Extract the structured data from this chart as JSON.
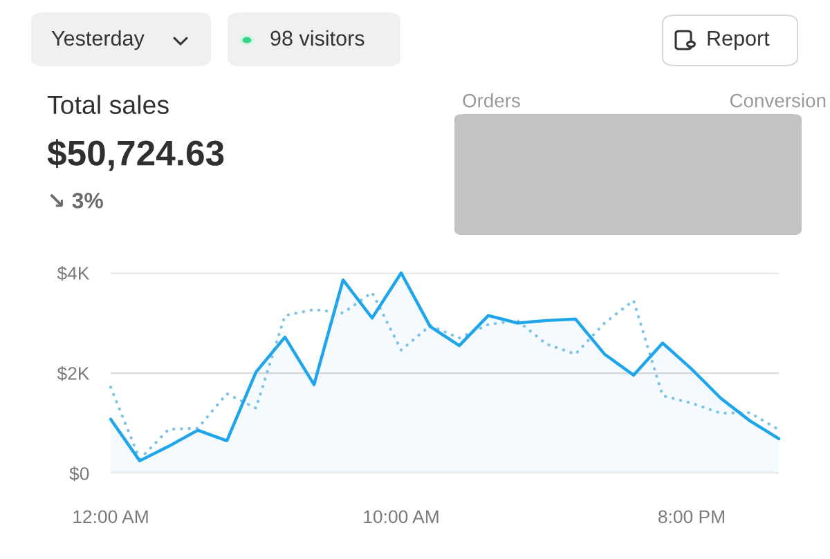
{
  "chart_data": {
    "type": "line",
    "title": "Total sales",
    "subtitle": "$50,724.63",
    "annotations": [
      "Yesterday",
      "98 visitors",
      "Report",
      "Orders",
      "Conversion",
      "↘ 3%"
    ],
    "x": [
      0,
      1,
      2,
      3,
      4,
      5,
      6,
      7,
      8,
      9,
      10,
      11,
      12,
      13,
      14,
      15,
      16,
      17,
      18,
      19,
      20,
      21,
      22,
      23
    ],
    "series": [
      {
        "type": "area",
        "color": "#1fa5ea",
        "line_style": "solid",
        "values": [
          1080,
          250,
          540,
          860,
          650,
          2020,
          2720,
          1770,
          3860,
          3100,
          4000,
          2930,
          2550,
          3150,
          3000,
          3050,
          3080,
          2380,
          1960,
          2600,
          2080,
          1500,
          1050,
          690
        ]
      },
      {
        "type": "line",
        "color": "#7ec3e6",
        "line_style": "dotted",
        "values": [
          1720,
          280,
          880,
          900,
          1590,
          1300,
          3150,
          3270,
          3200,
          3610,
          2460,
          2950,
          2700,
          2970,
          3050,
          2580,
          2380,
          3000,
          3450,
          1550,
          1400,
          1200,
          1210,
          870
        ]
      }
    ],
    "xlim": [
      0,
      23
    ],
    "ylim": [
      0,
      4000
    ],
    "xticks": [
      {
        "value": 0,
        "label": "12:00 AM"
      },
      {
        "value": 10,
        "label": "10:00 AM"
      },
      {
        "value": 20,
        "label": "8:00 PM"
      }
    ],
    "yticks": [
      {
        "value": 0,
        "label": "$0"
      },
      {
        "value": 2000,
        "label": "$2K"
      },
      {
        "value": 4000,
        "label": "$4K"
      }
    ],
    "grid": "y",
    "legend": false,
    "marker": "none"
  }
}
